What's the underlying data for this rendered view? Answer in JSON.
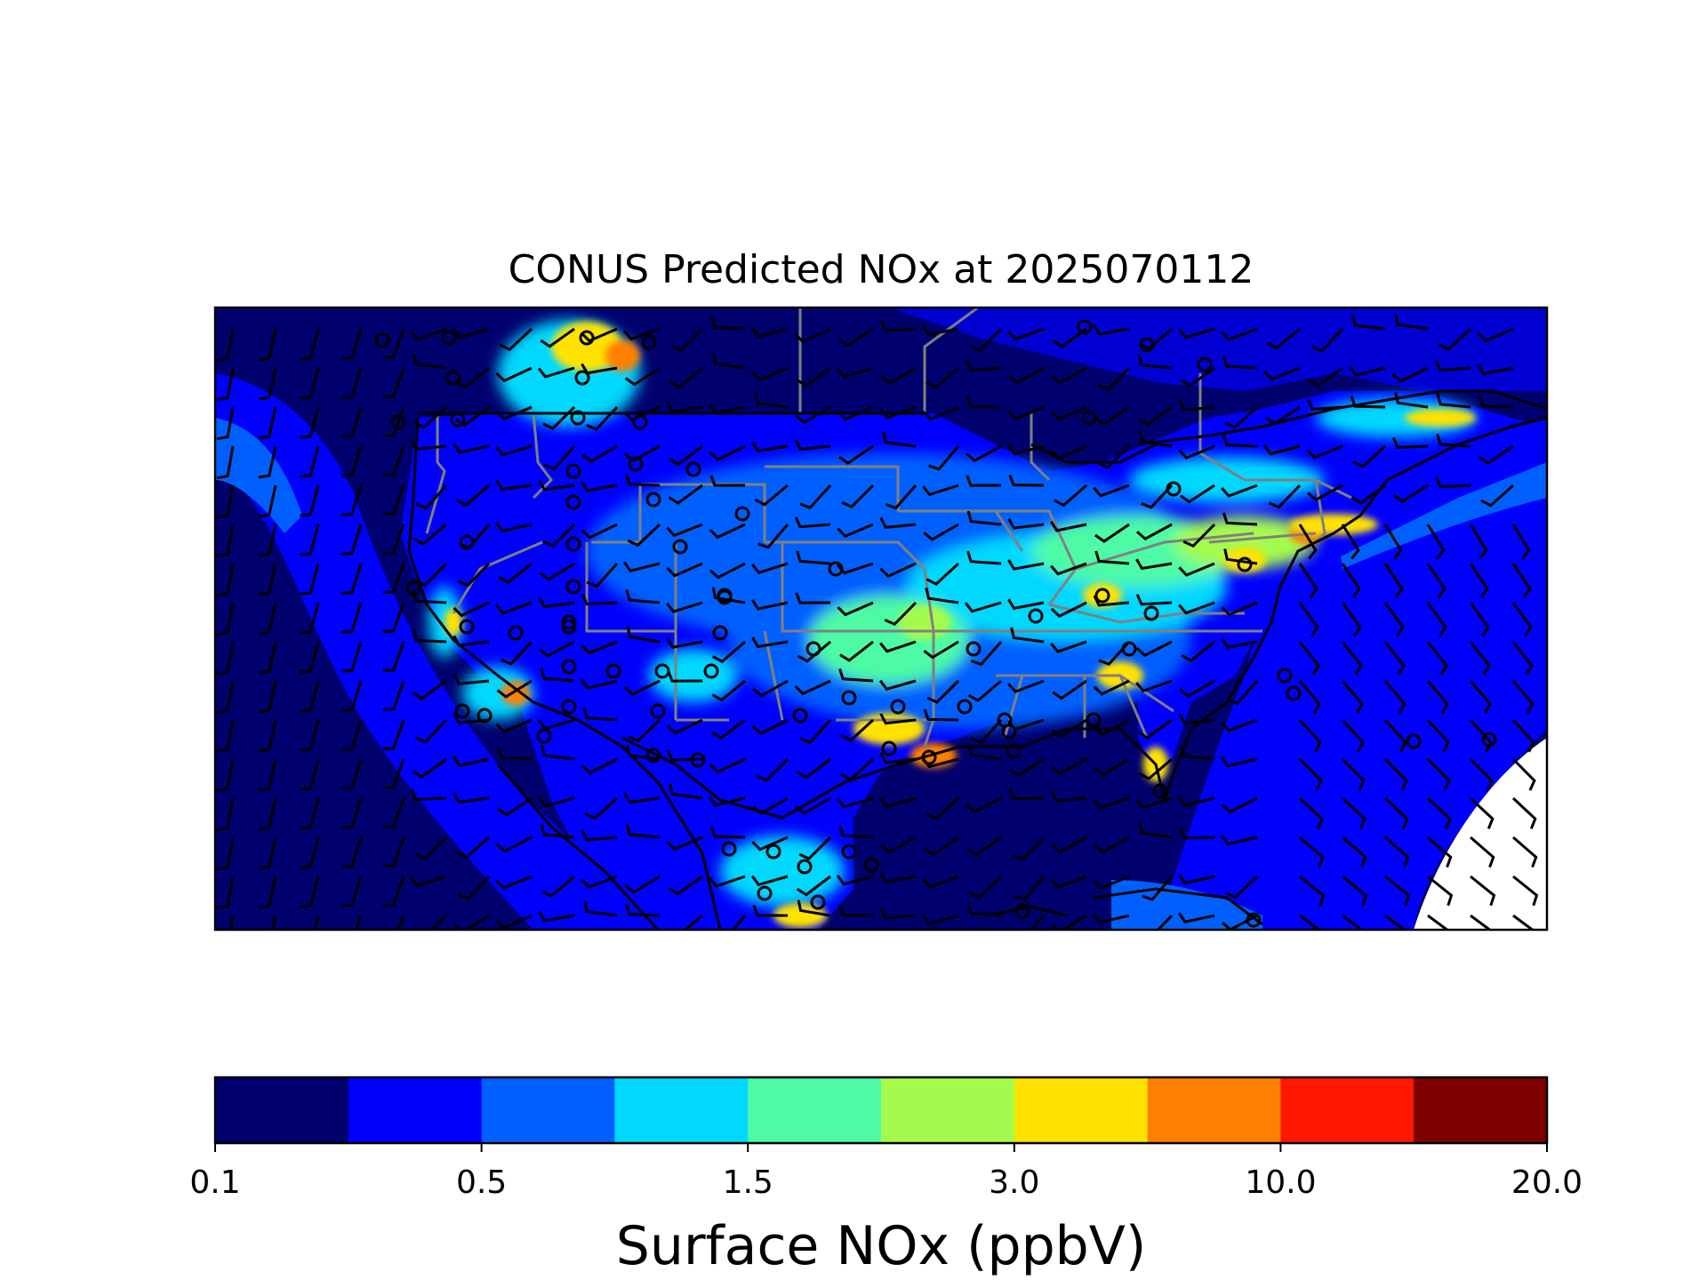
{
  "title": "CONUS Predicted NOx at 2025070112",
  "colorbar": {
    "label": "Surface NOx (ppbV)",
    "tick_labels": [
      "0.1",
      "0.5",
      "1.5",
      "3.0",
      "10.0",
      "20.0"
    ],
    "colors": [
      "#00006e",
      "#0000fd",
      "#0060ff",
      "#00d8ff",
      "#4dfba5",
      "#a5fb4d",
      "#ffe200",
      "#ff8000",
      "#ff1700",
      "#7d0000"
    ]
  },
  "map": {
    "field": "Surface NOx",
    "overlays": [
      "wind-barbs",
      "state-borders",
      "coastlines",
      "monitoring-sites"
    ]
  }
}
